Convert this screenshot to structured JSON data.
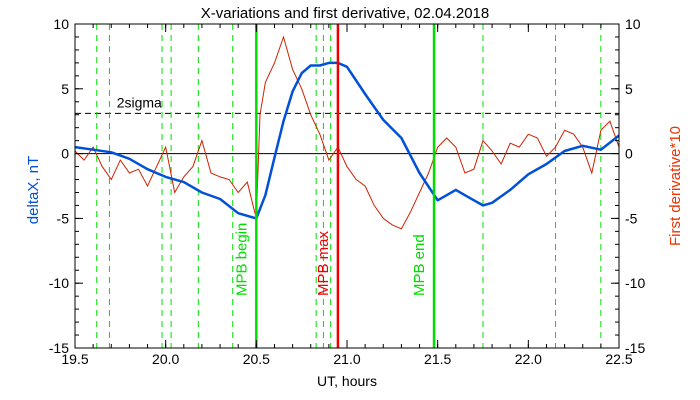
{
  "chart_data": {
    "type": "line",
    "title": "X-variations and first derivative, 02.04.2018",
    "xlabel": "UT, hours",
    "ylabel_left": "deltaX, nT",
    "ylabel_right": "First derivative*10",
    "xlim": [
      19.5,
      22.5
    ],
    "ylim": [
      -15,
      10
    ],
    "xticks": [
      "19.5",
      "20.0",
      "20.5",
      "21.0",
      "21.5",
      "22.0",
      "22.5"
    ],
    "yticks_left": [
      "10",
      "5",
      "0",
      "-5",
      "-10",
      "-15"
    ],
    "yticks_right": [
      "10",
      "5",
      "0",
      "-5",
      "-10",
      "-15"
    ],
    "colors": {
      "deltaX": "#0050d8",
      "derivative": "#cc2200",
      "event_lines": "#00dd00",
      "max_line": "#ee0000",
      "zero_line": "#000000",
      "sigma_line": "#000000"
    },
    "sigma_label": "2sigma",
    "sigma_value": 3.1,
    "series": [
      {
        "name": "deltaX, nT",
        "x": [
          19.5,
          19.6,
          19.7,
          19.8,
          19.9,
          20.0,
          20.1,
          20.2,
          20.3,
          20.4,
          20.5,
          20.55,
          20.6,
          20.65,
          20.7,
          20.75,
          20.8,
          20.85,
          20.9,
          20.95,
          21.0,
          21.1,
          21.2,
          21.3,
          21.4,
          21.5,
          21.6,
          21.7,
          21.75,
          21.8,
          21.9,
          22.0,
          22.1,
          22.2,
          22.3,
          22.4,
          22.5
        ],
        "values": [
          0.5,
          0.3,
          0.1,
          -0.4,
          -1.2,
          -1.8,
          -2.2,
          -3.0,
          -3.5,
          -4.6,
          -5.0,
          -3.2,
          -0.3,
          2.5,
          4.8,
          6.2,
          6.8,
          6.8,
          7.0,
          7.0,
          6.7,
          4.6,
          2.6,
          1.2,
          -1.5,
          -3.6,
          -2.8,
          -3.6,
          -4.0,
          -3.8,
          -2.8,
          -1.6,
          -0.8,
          0.2,
          0.6,
          0.3,
          1.4
        ]
      },
      {
        "name": "First derivative*10",
        "x": [
          19.5,
          19.55,
          19.6,
          19.65,
          19.7,
          19.75,
          19.8,
          19.85,
          19.9,
          19.95,
          20.0,
          20.05,
          20.1,
          20.15,
          20.2,
          20.25,
          20.3,
          20.35,
          20.4,
          20.45,
          20.5,
          20.52,
          20.55,
          20.6,
          20.65,
          20.7,
          20.75,
          20.8,
          20.85,
          20.9,
          20.95,
          21.0,
          21.05,
          21.1,
          21.15,
          21.2,
          21.25,
          21.3,
          21.35,
          21.4,
          21.45,
          21.5,
          21.55,
          21.6,
          21.65,
          21.7,
          21.75,
          21.8,
          21.85,
          21.9,
          21.95,
          22.0,
          22.05,
          22.1,
          22.15,
          22.2,
          22.25,
          22.3,
          22.35,
          22.4,
          22.45,
          22.5
        ],
        "values": [
          0.2,
          -0.5,
          0.5,
          -1.0,
          -2.0,
          -0.5,
          -1.5,
          -1.2,
          -2.5,
          -1.0,
          0.5,
          -3.0,
          -1.8,
          -1.0,
          1.0,
          -1.5,
          -1.8,
          -2.0,
          -3.0,
          -2.2,
          -5.0,
          3.0,
          5.5,
          7.0,
          9.0,
          6.5,
          5.0,
          3.0,
          1.5,
          -0.5,
          0.5,
          -1.0,
          -2.0,
          -2.5,
          -4.0,
          -5.0,
          -5.5,
          -5.8,
          -4.5,
          -3.0,
          -1.5,
          0.5,
          1.2,
          0.5,
          -1.5,
          -1.2,
          1.0,
          0.2,
          -0.8,
          0.8,
          0.5,
          1.5,
          1.2,
          -0.2,
          0.5,
          1.8,
          1.5,
          0.5,
          -1.5,
          1.8,
          2.5,
          0.5
        ]
      }
    ],
    "vlines_dashed": [
      19.62,
      19.69,
      19.98,
      20.03,
      20.18,
      20.37,
      20.83,
      20.87,
      20.91,
      21.75,
      22.15,
      22.4
    ],
    "events": [
      {
        "x": 20.5,
        "label": "MPB begin",
        "kind": "begin"
      },
      {
        "x": 20.95,
        "label": "MPB max",
        "kind": "max"
      },
      {
        "x": 21.48,
        "label": "MPB end",
        "kind": "end"
      }
    ]
  }
}
